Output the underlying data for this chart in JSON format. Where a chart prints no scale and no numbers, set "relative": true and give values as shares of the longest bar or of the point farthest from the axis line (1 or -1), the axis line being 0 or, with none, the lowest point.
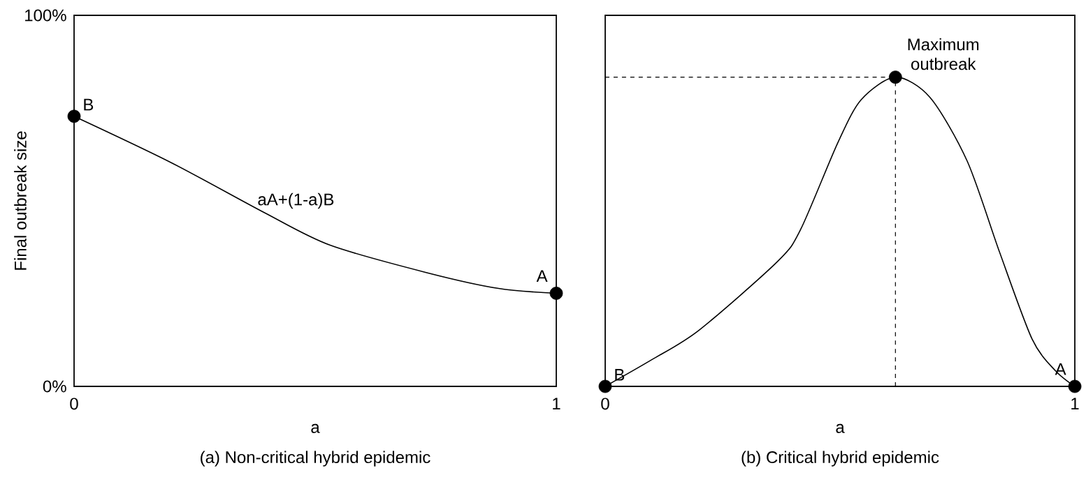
{
  "chart_data": [
    {
      "type": "line",
      "title": "(a) Non-critical hybrid epidemic",
      "xlabel": "a",
      "ylabel": "Final outbreak size",
      "xlim": [
        0,
        1
      ],
      "xticks": [
        0,
        1
      ],
      "ylim": [
        0,
        100
      ],
      "yticks": [
        {
          "value": 0,
          "label": "0%"
        },
        {
          "value": 100,
          "label": "100%"
        }
      ],
      "series": [
        {
          "color": "#000000",
          "x": [
            0,
            0.2,
            0.395,
            0.53,
            0.73,
            0.88,
            1
          ],
          "values": [
            72.8,
            60.4,
            46.8,
            38.1,
            30.7,
            26.4,
            25.1
          ]
        },
        {
          "type": "scatter",
          "color": "#000000",
          "x": [
            0,
            1
          ],
          "values": [
            72.8,
            25.1
          ]
        }
      ],
      "annotations": [
        {
          "text": "B",
          "x": 0,
          "y": 72.8
        },
        {
          "text": "A",
          "x": 1,
          "y": 25.1
        },
        "aA+(1-a)B"
      ]
    },
    {
      "type": "line",
      "title": "(b) Critical hybrid epidemic",
      "xlabel": "a",
      "xlim": [
        0,
        1
      ],
      "xticks": [
        0,
        1
      ],
      "relative": true,
      "series": [
        {
          "color": "#000000",
          "x": [
            0,
            0.1,
            0.2,
            0.367,
            0.416,
            0.495,
            0.545,
            0.618,
            0.692,
            0.771,
            0.84,
            0.909,
            0.959,
            1
          ],
          "values": [
            0,
            0.087,
            0.182,
            0.404,
            0.507,
            0.787,
            0.927,
            1,
            0.934,
            0.728,
            0.433,
            0.153,
            0.05,
            0
          ]
        },
        {
          "type": "scatter",
          "color": "#000000",
          "x": [
            0,
            0.618,
            1
          ],
          "values": [
            0,
            1,
            0
          ]
        }
      ],
      "ref_lines": [
        {
          "axis": "x",
          "value": 0.618,
          "line_style": "dashed"
        },
        {
          "axis": "y",
          "value": 1,
          "line_style": "dashed"
        }
      ],
      "annotations": [
        {
          "text": "B",
          "x": 0,
          "y": 0
        },
        {
          "text": "A",
          "x": 1,
          "y": 0
        },
        {
          "text": "Maximum outbreak",
          "x": 0.618,
          "y": 1
        }
      ]
    }
  ]
}
